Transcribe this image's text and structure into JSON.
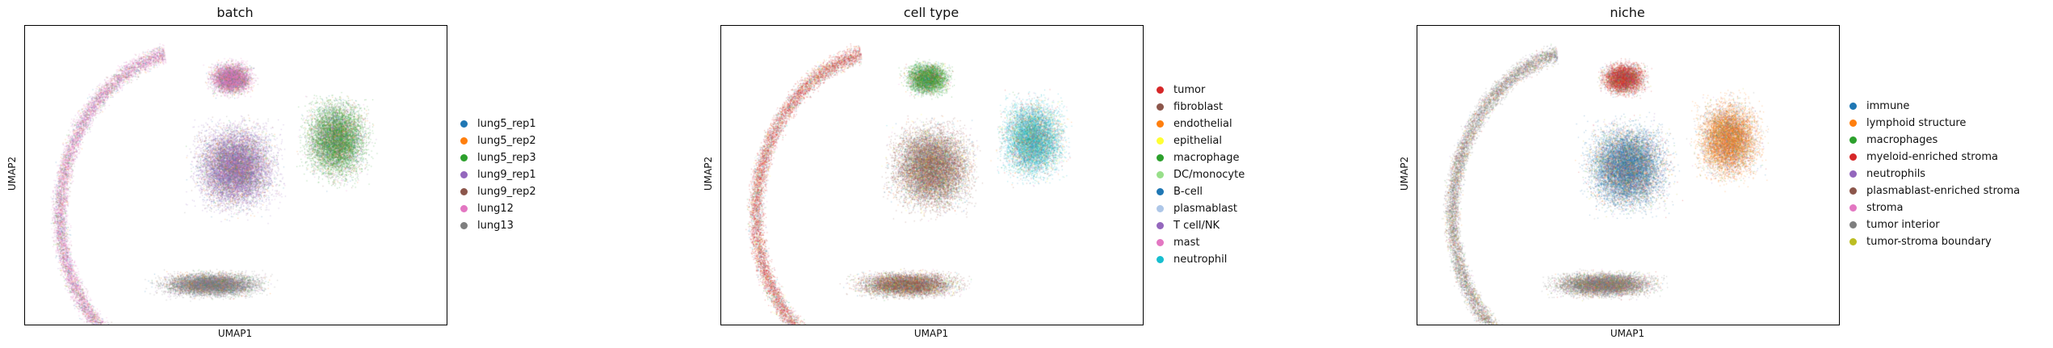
{
  "chart_data": [
    {
      "type": "scatter",
      "title": "batch",
      "xlabel": "UMAP1",
      "ylabel": "UMAP2",
      "legend_position": "right",
      "grid": false,
      "series": [
        {
          "name": "lung5_rep1",
          "color": "#1f77b4"
        },
        {
          "name": "lung5_rep2",
          "color": "#ff7f0e"
        },
        {
          "name": "lung5_rep3",
          "color": "#2ca02c"
        },
        {
          "name": "lung9_rep1",
          "color": "#9467bd"
        },
        {
          "name": "lung9_rep2",
          "color": "#8c564b"
        },
        {
          "name": "lung12",
          "color": "#e377c2"
        },
        {
          "name": "lung13",
          "color": "#7f7f7f"
        }
      ]
    },
    {
      "type": "scatter",
      "title": "cell type",
      "xlabel": "UMAP1",
      "ylabel": "UMAP2",
      "legend_position": "right",
      "grid": false,
      "series": [
        {
          "name": "tumor",
          "color": "#d62728"
        },
        {
          "name": "fibroblast",
          "color": "#8c564b"
        },
        {
          "name": "endothelial",
          "color": "#ff7f0e"
        },
        {
          "name": "epithelial",
          "color": "#ffff33"
        },
        {
          "name": "macrophage",
          "color": "#2ca02c"
        },
        {
          "name": "DC/monocyte",
          "color": "#98df8a"
        },
        {
          "name": "B-cell",
          "color": "#1f77b4"
        },
        {
          "name": "plasmablast",
          "color": "#aec7e8"
        },
        {
          "name": "T cell/NK",
          "color": "#9467bd"
        },
        {
          "name": "mast",
          "color": "#e377c2"
        },
        {
          "name": "neutrophil",
          "color": "#17becf"
        }
      ]
    },
    {
      "type": "scatter",
      "title": "niche",
      "xlabel": "UMAP1",
      "ylabel": "UMAP2",
      "legend_position": "right",
      "grid": false,
      "series": [
        {
          "name": "immune",
          "color": "#1f77b4"
        },
        {
          "name": "lymphoid structure",
          "color": "#ff7f0e"
        },
        {
          "name": "macrophages",
          "color": "#2ca02c"
        },
        {
          "name": "myeloid-enriched stroma",
          "color": "#d62728"
        },
        {
          "name": "neutrophils",
          "color": "#9467bd"
        },
        {
          "name": "plasmablast-enriched stroma",
          "color": "#8c564b"
        },
        {
          "name": "stroma",
          "color": "#e377c2"
        },
        {
          "name": "tumor interior",
          "color": "#7f7f7f"
        },
        {
          "name": "tumor-stroma boundary",
          "color": "#bcbd22"
        }
      ]
    }
  ]
}
